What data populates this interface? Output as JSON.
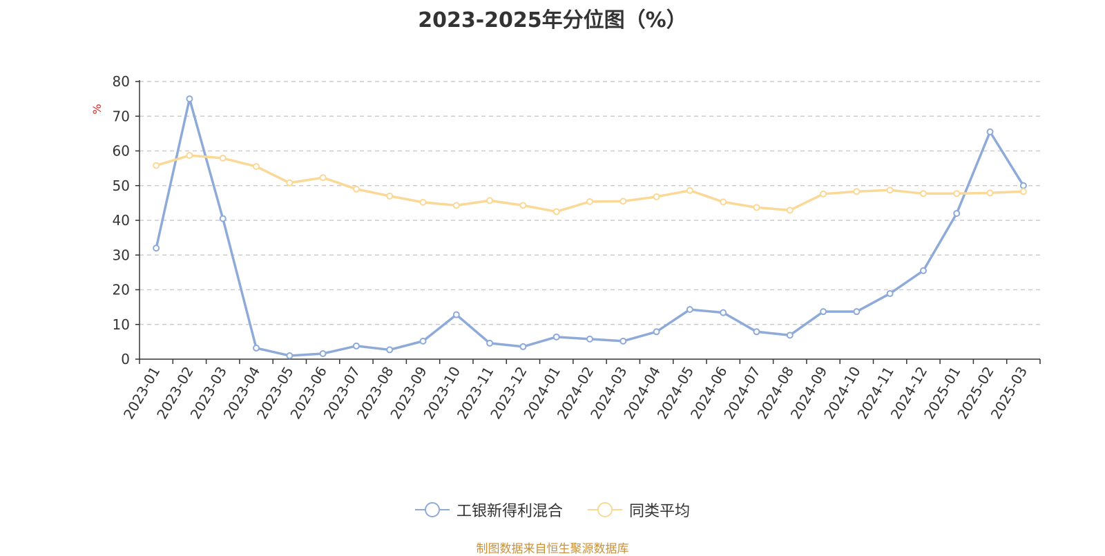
{
  "chart_data": {
    "type": "line",
    "title": "2023-2025年分位图（%）",
    "ylabel": "%",
    "xlabel": "",
    "ylim": [
      0,
      80
    ],
    "yticks": [
      "0",
      "10",
      "20",
      "30",
      "40",
      "50",
      "60",
      "70",
      "80"
    ],
    "grid": true,
    "legend_position": "bottom-center",
    "categories": [
      "2023-01",
      "2023-02",
      "2023-03",
      "2023-04",
      "2023-05",
      "2023-06",
      "2023-07",
      "2023-08",
      "2023-09",
      "2023-10",
      "2023-11",
      "2023-12",
      "2024-01",
      "2024-02",
      "2024-03",
      "2024-04",
      "2024-05",
      "2024-06",
      "2024-07",
      "2024-08",
      "2024-09",
      "2024-10",
      "2024-11",
      "2024-12",
      "2025-01",
      "2025-02",
      "2025-03"
    ],
    "series": [
      {
        "name": "工银新得利混合",
        "color": "#8eaad9",
        "values": [
          32,
          75,
          40.5,
          3.2,
          1,
          1.6,
          3.8,
          2.7,
          5.2,
          12.8,
          4.6,
          3.6,
          6.4,
          5.8,
          5.2,
          7.9,
          14.3,
          13.4,
          7.9,
          6.9,
          13.7,
          13.7,
          18.9,
          25.5,
          42,
          65.5,
          50
        ]
      },
      {
        "name": "同类平均",
        "color": "#fad896",
        "values": [
          55.8,
          58.7,
          57.9,
          55.5,
          50.8,
          52.3,
          49,
          47,
          45.2,
          44.3,
          45.7,
          44.3,
          42.5,
          45.4,
          45.5,
          46.8,
          48.6,
          45.3,
          43.7,
          42.9,
          47.6,
          48.3,
          48.7,
          47.7,
          47.7,
          47.9,
          48.3
        ]
      }
    ]
  },
  "source_note": "制图数据来自恒生聚源数据库"
}
